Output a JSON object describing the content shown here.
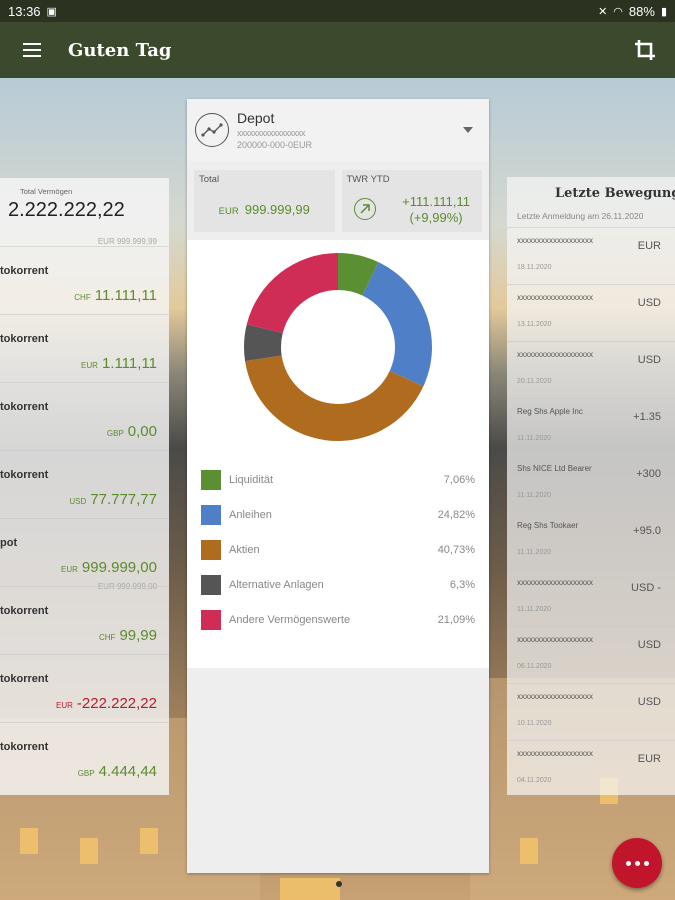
{
  "status": {
    "time": "13:36",
    "battery": "88%"
  },
  "appbar": {
    "title": "Guten Tag"
  },
  "depot": {
    "title": "Depot",
    "masked": "xxxxxxxxxxxxxxxxx",
    "number": "200000-000-0EUR",
    "total_label": "Total",
    "total_currency": "EUR",
    "total_value": "999.999,99",
    "twr_label": "TWR YTD",
    "twr_value": "+111.111,11",
    "twr_pct": "(+9,99%)"
  },
  "allocation": [
    {
      "name": "Liquidität",
      "pct": "7,06%",
      "value": 7.06,
      "color": "#5b8f34"
    },
    {
      "name": "Anleihen",
      "pct": "24,82%",
      "value": 24.82,
      "color": "#4f7fc6"
    },
    {
      "name": "Aktien",
      "pct": "40,73%",
      "value": 40.73,
      "color": "#b06c1e"
    },
    {
      "name": "Alternative Anlagen",
      "pct": "6,3%",
      "value": 6.3,
      "color": "#555555"
    },
    {
      "name": "Andere Vermögenswerte",
      "pct": "21,09%",
      "value": 21.09,
      "color": "#cf2d55"
    }
  ],
  "left": {
    "total_label": "Total Vermögen",
    "total_value": "2.222.222,22",
    "total_sub": "EUR 999.999,99",
    "accounts": [
      {
        "name": "tokorrent",
        "currency": "CHF",
        "value": "11.111,11",
        "negative": false,
        "sub": ""
      },
      {
        "name": "tokorrent",
        "currency": "EUR",
        "value": "1.111,11",
        "negative": false,
        "sub": ""
      },
      {
        "name": "tokorrent",
        "currency": "GBP",
        "value": "0,00",
        "negative": false,
        "sub": ""
      },
      {
        "name": "tokorrent",
        "currency": "USD",
        "value": "77.777,77",
        "negative": false,
        "sub": ""
      },
      {
        "name": "pot",
        "currency": "EUR",
        "value": "999.999,00",
        "negative": false,
        "sub": "EUR 999.999,00"
      },
      {
        "name": "tokorrent",
        "currency": "CHF",
        "value": "99,99",
        "negative": false,
        "sub": ""
      },
      {
        "name": "tokorrent",
        "currency": "EUR",
        "value": "-222.222,22",
        "negative": true,
        "sub": ""
      },
      {
        "name": "tokorrent",
        "currency": "GBP",
        "value": "4.444,44",
        "negative": false,
        "sub": ""
      }
    ]
  },
  "right": {
    "title": "Letzte Bewegung",
    "subtitle": "Letzte Anmeldung am 26.11.2020",
    "movements": [
      {
        "name": "xxxxxxxxxxxxxxxxxxx",
        "currency": "EUR",
        "date": "18.11.2020"
      },
      {
        "name": "xxxxxxxxxxxxxxxxxxx",
        "currency": "USD",
        "date": "13.11.2020"
      },
      {
        "name": "xxxxxxxxxxxxxxxxxxx",
        "currency": "USD",
        "date": "20.11.2020"
      },
      {
        "name": "Reg Shs Apple Inc",
        "currency": "+1.35",
        "date": "11.11.2020"
      },
      {
        "name": "Shs NICE Ltd Bearer",
        "currency": "+300",
        "date": "11.11.2020"
      },
      {
        "name": "Reg Shs Tookaer",
        "currency": "+95.0",
        "date": "11.11.2020"
      },
      {
        "name": "xxxxxxxxxxxxxxxxxxx",
        "currency": "USD -",
        "date": "11.11.2020"
      },
      {
        "name": "xxxxxxxxxxxxxxxxxxx",
        "currency": "USD",
        "date": "06.11.2020"
      },
      {
        "name": "xxxxxxxxxxxxxxxxxxx",
        "currency": "USD",
        "date": "10.11.2020"
      },
      {
        "name": "xxxxxxxxxxxxxxxxxxx",
        "currency": "EUR",
        "date": "04.11.2020"
      }
    ]
  }
}
